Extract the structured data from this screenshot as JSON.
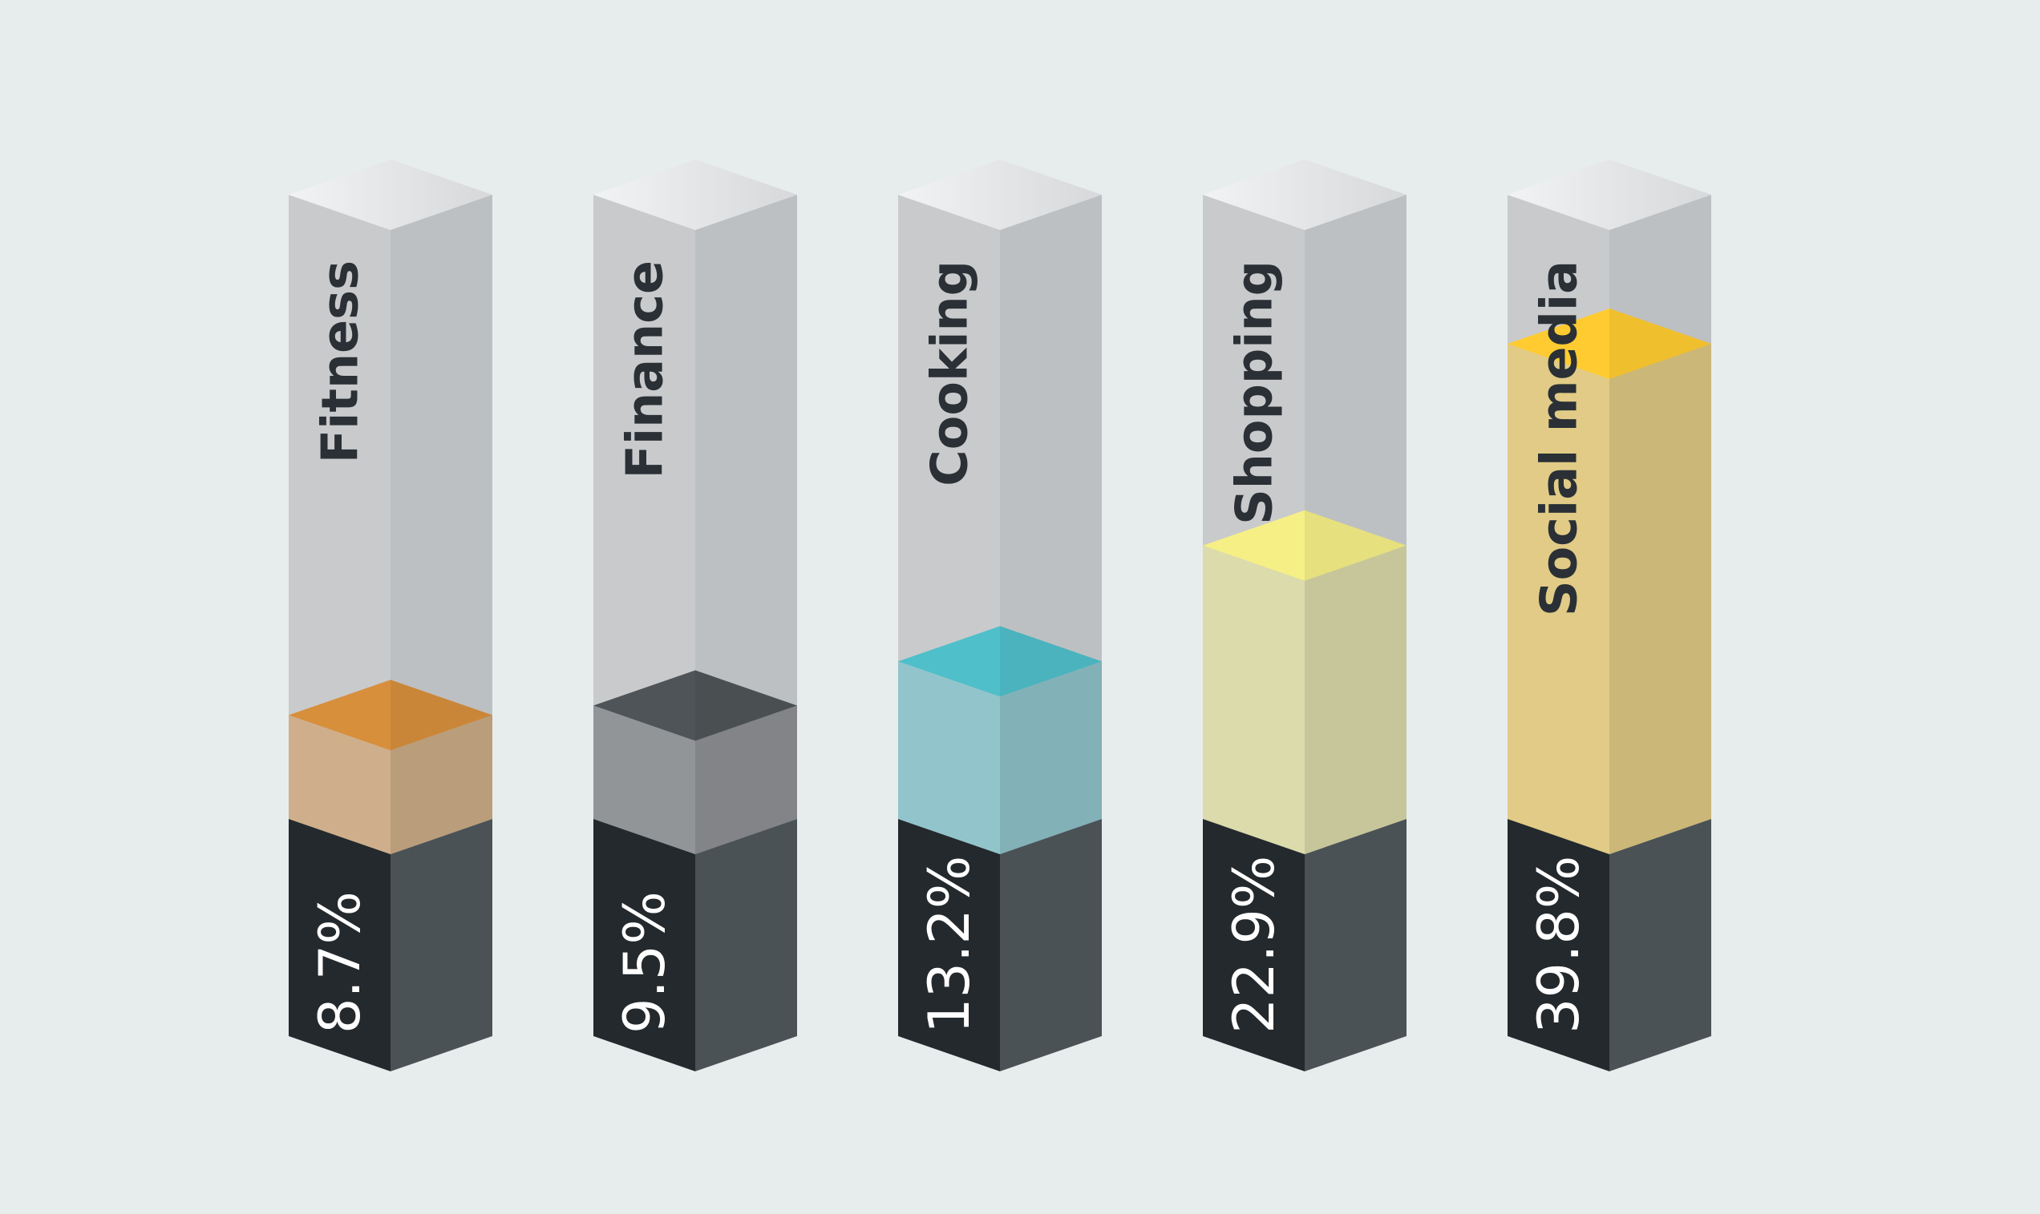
{
  "chart_data": {
    "type": "bar",
    "categories": [
      "Fitness",
      "Finance",
      "Cooking",
      "Shopping",
      "Social media"
    ],
    "values": [
      8.7,
      9.5,
      13.2,
      22.9,
      39.8
    ],
    "value_labels": [
      "8.7%",
      "9.5%",
      "13.2%",
      "22.9%",
      "39.8%"
    ],
    "colors": [
      "#d78f3c",
      "#4f5458",
      "#4fbfca",
      "#f5ef86",
      "#ffcb30"
    ]
  }
}
